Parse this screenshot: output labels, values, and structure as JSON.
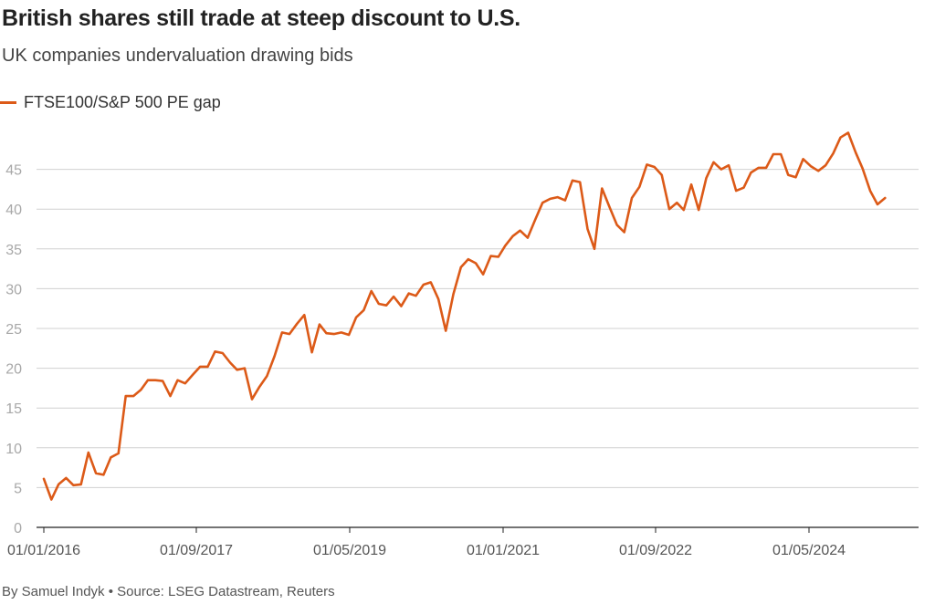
{
  "title": "British shares still trade at steep discount to U.S.",
  "subtitle": "UK companies undervaluation drawing bids",
  "footer": "By Samuel Indyk • Source: LSEG Datastream, Reuters",
  "colors": {
    "line": "#dc5a18",
    "grid": "#d0d0d0",
    "axis": "#222222",
    "tick_text": "#a8a8a8"
  },
  "chart_data": {
    "type": "line",
    "title": "British shares still trade at steep discount to U.S.",
    "subtitle": "UK companies undervaluation drawing bids",
    "xlabel": "",
    "ylabel": "",
    "ylim": [
      0,
      50
    ],
    "yticks": [
      0,
      5,
      10,
      15,
      20,
      25,
      30,
      35,
      40,
      45
    ],
    "xticks": [
      "01/01/2016",
      "01/09/2017",
      "01/05/2019",
      "01/01/2021",
      "01/09/2022",
      "01/05/2024"
    ],
    "xlim": [
      "2016-01-01",
      "2025-05-01"
    ],
    "grid": true,
    "legend_position": "top-left",
    "series": [
      {
        "name": "FTSE100/S&P 500 PE gap",
        "color": "#dc5a18",
        "points": [
          [
            "2016-01-01",
            6.1
          ],
          [
            "2016-02-01",
            3.5
          ],
          [
            "2016-03-01",
            5.4
          ],
          [
            "2016-04-01",
            6.2
          ],
          [
            "2016-05-01",
            5.3
          ],
          [
            "2016-06-01",
            5.4
          ],
          [
            "2016-07-01",
            9.4
          ],
          [
            "2016-08-01",
            6.8
          ],
          [
            "2016-09-01",
            6.6
          ],
          [
            "2016-10-01",
            8.8
          ],
          [
            "2016-11-01",
            9.3
          ],
          [
            "2016-12-01",
            16.5
          ],
          [
            "2017-01-01",
            16.5
          ],
          [
            "2017-02-01",
            17.3
          ],
          [
            "2017-03-01",
            18.5
          ],
          [
            "2017-04-01",
            18.5
          ],
          [
            "2017-05-01",
            18.4
          ],
          [
            "2017-06-01",
            16.5
          ],
          [
            "2017-07-01",
            18.5
          ],
          [
            "2017-08-01",
            18.1
          ],
          [
            "2017-09-01",
            19.2
          ],
          [
            "2017-10-01",
            20.2
          ],
          [
            "2017-11-01",
            20.2
          ],
          [
            "2017-12-01",
            22.1
          ],
          [
            "2018-01-01",
            21.9
          ],
          [
            "2018-02-01",
            20.7
          ],
          [
            "2018-03-01",
            19.8
          ],
          [
            "2018-04-01",
            20.0
          ],
          [
            "2018-05-01",
            16.1
          ],
          [
            "2018-06-01",
            17.7
          ],
          [
            "2018-07-01",
            19.0
          ],
          [
            "2018-08-01",
            21.5
          ],
          [
            "2018-09-01",
            24.5
          ],
          [
            "2018-10-01",
            24.3
          ],
          [
            "2018-11-01",
            25.6
          ],
          [
            "2018-12-01",
            26.7
          ],
          [
            "2019-01-01",
            22.0
          ],
          [
            "2019-02-01",
            25.5
          ],
          [
            "2019-03-01",
            24.4
          ],
          [
            "2019-04-01",
            24.3
          ],
          [
            "2019-05-01",
            24.5
          ],
          [
            "2019-06-01",
            24.2
          ],
          [
            "2019-07-01",
            26.4
          ],
          [
            "2019-08-01",
            27.3
          ],
          [
            "2019-09-01",
            29.7
          ],
          [
            "2019-10-01",
            28.1
          ],
          [
            "2019-11-01",
            27.9
          ],
          [
            "2019-12-01",
            29.0
          ],
          [
            "2020-01-01",
            27.8
          ],
          [
            "2020-02-01",
            29.4
          ],
          [
            "2020-03-01",
            29.1
          ],
          [
            "2020-04-01",
            30.5
          ],
          [
            "2020-05-01",
            30.8
          ],
          [
            "2020-06-01",
            28.7
          ],
          [
            "2020-07-01",
            24.7
          ],
          [
            "2020-08-01",
            29.3
          ],
          [
            "2020-09-01",
            32.7
          ],
          [
            "2020-10-01",
            33.7
          ],
          [
            "2020-11-01",
            33.2
          ],
          [
            "2020-12-01",
            31.8
          ],
          [
            "2021-01-01",
            34.1
          ],
          [
            "2021-02-01",
            34.0
          ],
          [
            "2021-03-01",
            35.4
          ],
          [
            "2021-04-01",
            36.6
          ],
          [
            "2021-05-01",
            37.3
          ],
          [
            "2021-06-01",
            36.4
          ],
          [
            "2021-07-01",
            38.6
          ],
          [
            "2021-08-01",
            40.8
          ],
          [
            "2021-09-01",
            41.3
          ],
          [
            "2021-10-01",
            41.5
          ],
          [
            "2021-11-01",
            41.1
          ],
          [
            "2021-12-01",
            43.6
          ],
          [
            "2022-01-01",
            43.4
          ],
          [
            "2022-02-01",
            37.5
          ],
          [
            "2022-03-01",
            35.0
          ],
          [
            "2022-04-01",
            42.6
          ],
          [
            "2022-05-01",
            40.3
          ],
          [
            "2022-06-01",
            38.0
          ],
          [
            "2022-07-01",
            37.1
          ],
          [
            "2022-08-01",
            41.4
          ],
          [
            "2022-09-01",
            42.8
          ],
          [
            "2022-10-01",
            45.6
          ],
          [
            "2022-11-01",
            45.3
          ],
          [
            "2022-12-01",
            44.3
          ],
          [
            "2023-01-01",
            40.0
          ],
          [
            "2023-02-01",
            40.8
          ],
          [
            "2023-03-01",
            39.9
          ],
          [
            "2023-04-01",
            43.1
          ],
          [
            "2023-05-01",
            39.9
          ],
          [
            "2023-06-01",
            43.9
          ],
          [
            "2023-07-01",
            45.9
          ],
          [
            "2023-08-01",
            45.0
          ],
          [
            "2023-09-01",
            45.5
          ],
          [
            "2023-10-01",
            42.3
          ],
          [
            "2023-11-01",
            42.7
          ],
          [
            "2023-12-01",
            44.6
          ],
          [
            "2024-01-01",
            45.2
          ],
          [
            "2024-02-01",
            45.2
          ],
          [
            "2024-03-01",
            46.9
          ],
          [
            "2024-04-01",
            46.9
          ],
          [
            "2024-05-01",
            44.3
          ],
          [
            "2024-06-01",
            44.0
          ],
          [
            "2024-07-01",
            46.3
          ],
          [
            "2024-08-01",
            45.4
          ],
          [
            "2024-09-01",
            44.8
          ],
          [
            "2024-10-01",
            45.5
          ],
          [
            "2024-11-01",
            47.0
          ],
          [
            "2024-12-01",
            49.0
          ],
          [
            "2025-01-01",
            49.6
          ],
          [
            "2025-02-01",
            47.1
          ],
          [
            "2025-03-01",
            45.1
          ],
          [
            "2025-04-01",
            42.3
          ],
          [
            "2025-05-01",
            40.6
          ],
          [
            "2025-06-01",
            41.4
          ]
        ]
      }
    ]
  }
}
